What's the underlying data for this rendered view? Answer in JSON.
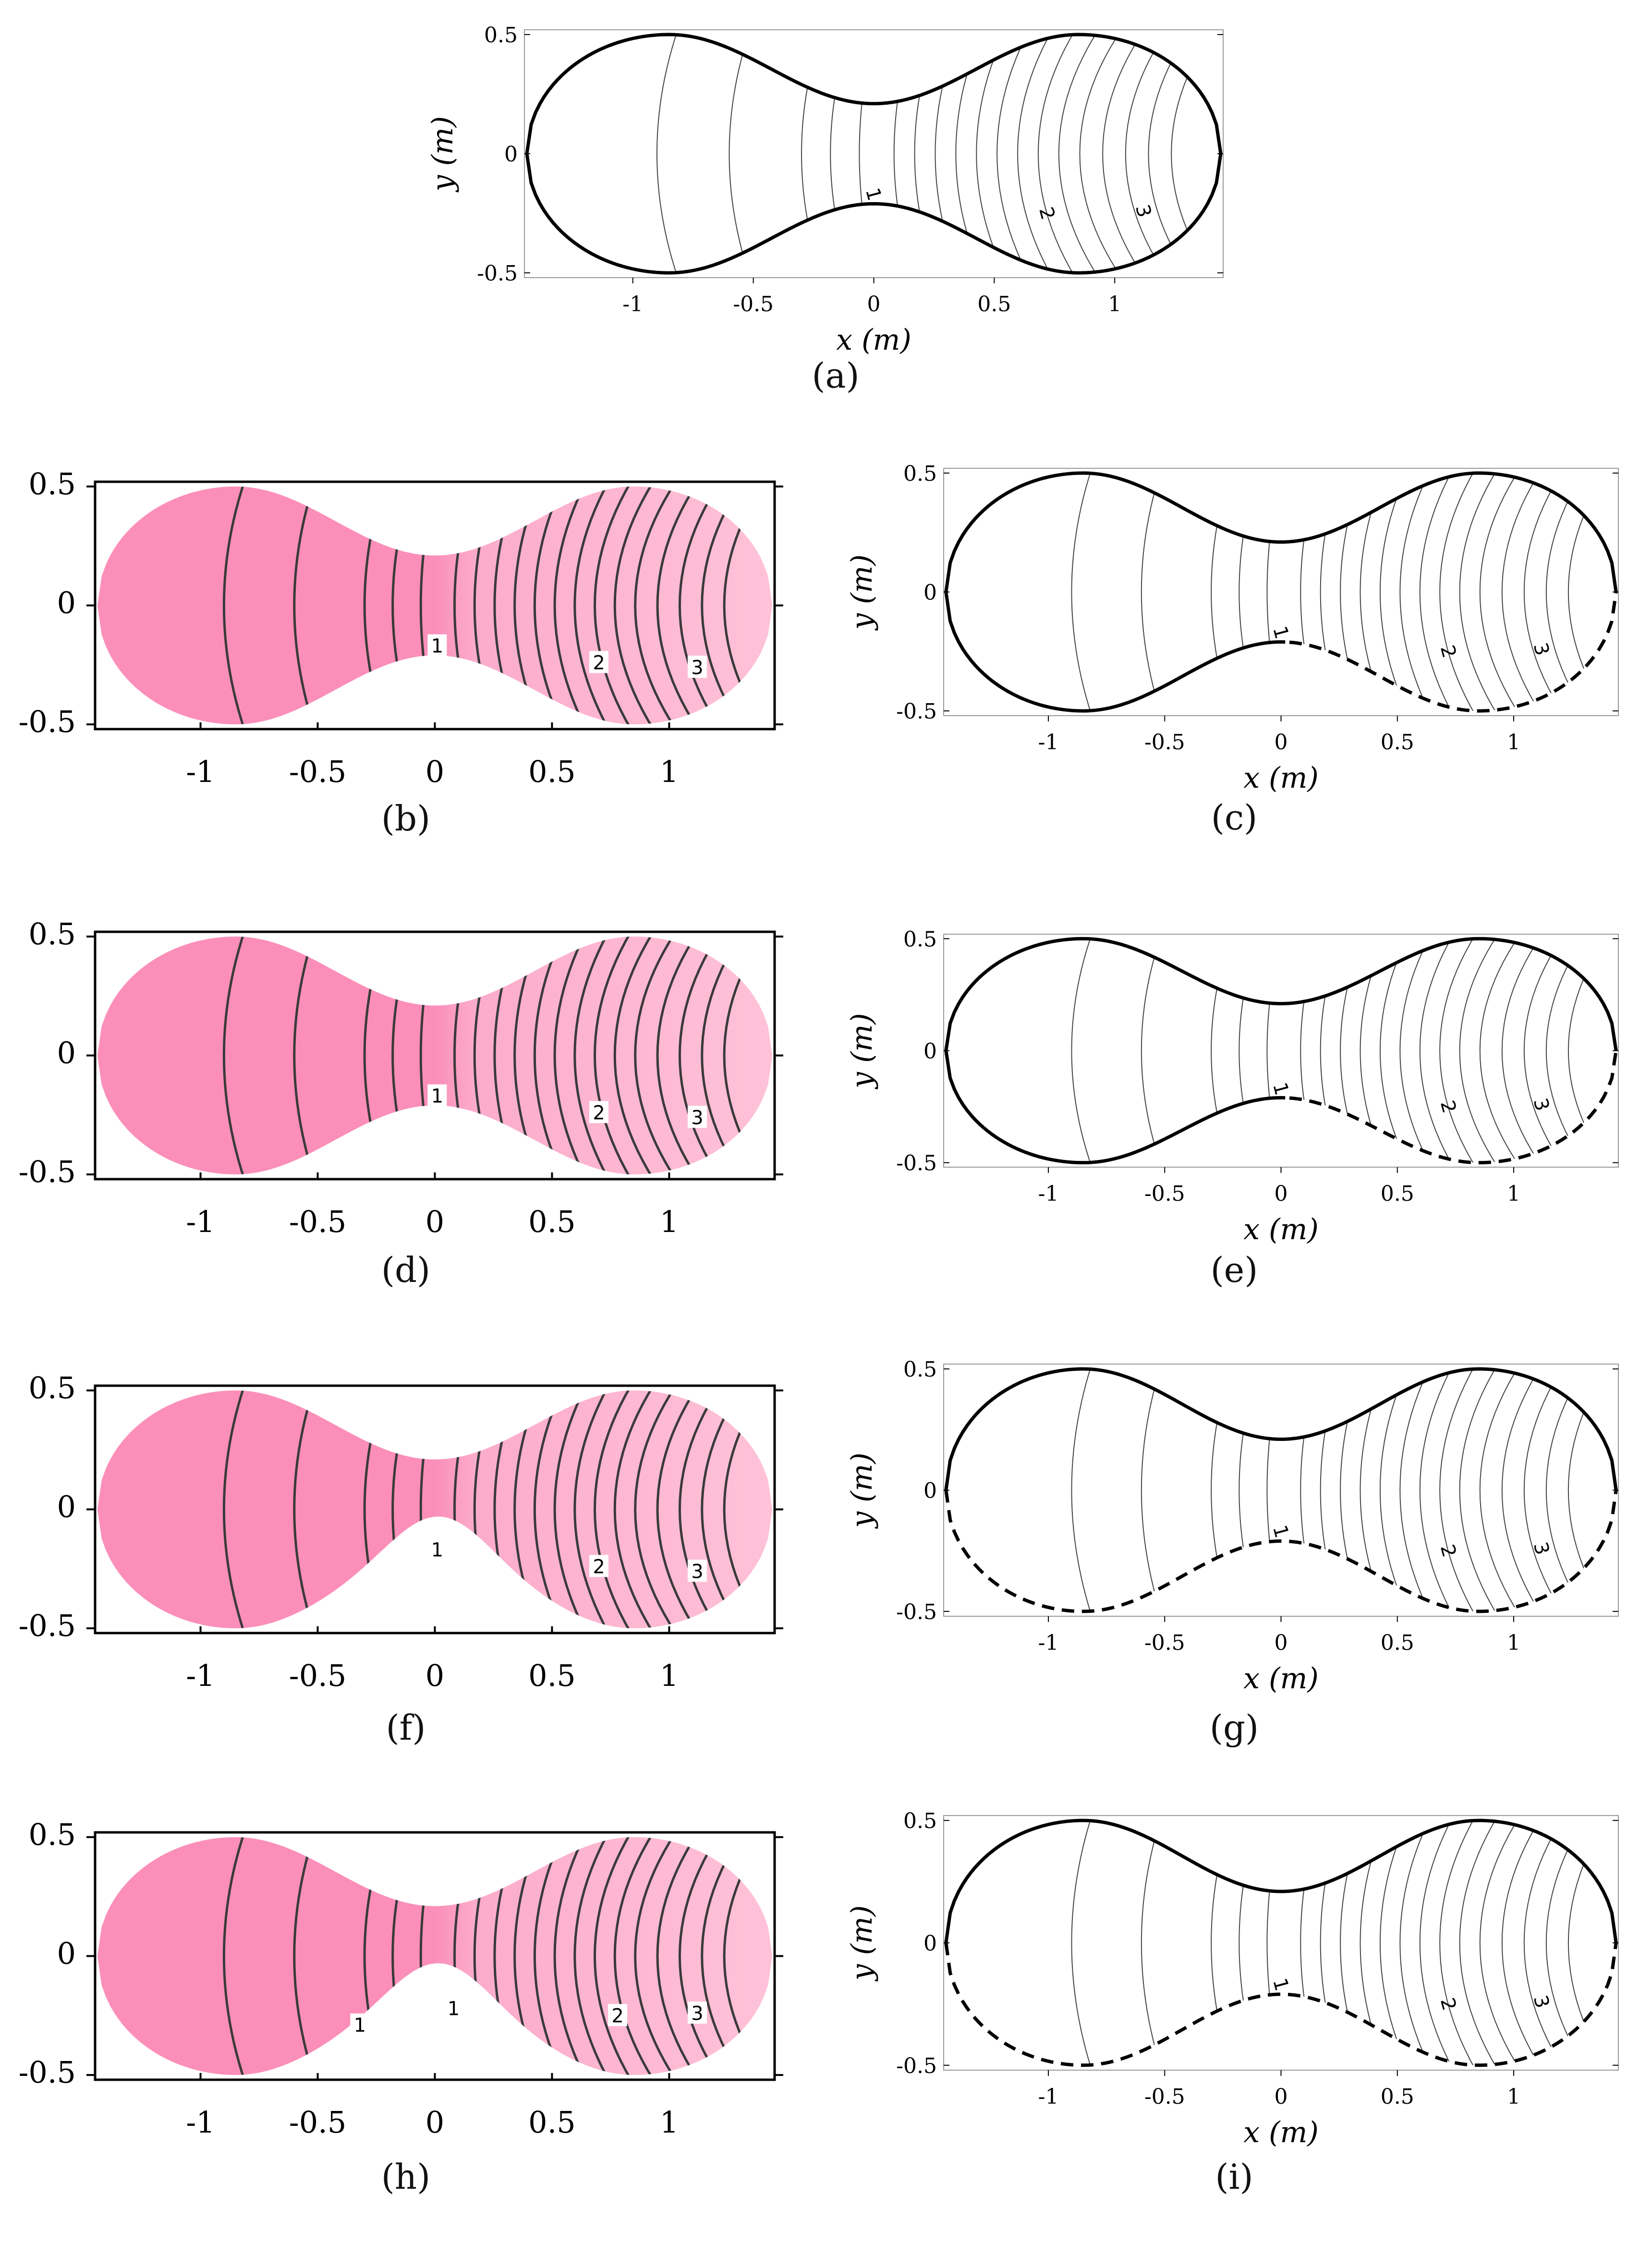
{
  "chart_data": [
    {
      "panel": "a",
      "type": "contour",
      "style": "line",
      "xlim": [
        -1.45,
        1.45
      ],
      "ylim": [
        -0.52,
        0.52
      ],
      "x_ticks": [
        "-1",
        "-0.5",
        "0",
        "0.5",
        "1"
      ],
      "y_ticks": [
        "0.5",
        "0",
        "-0.5"
      ],
      "xlabel": "x (m)",
      "ylabel": "y (m)",
      "contour_labels": [
        "1",
        "2",
        "3"
      ],
      "boundary": {
        "top": "solid",
        "bottom": "solid",
        "dashed_bottom_from_x": null
      }
    },
    {
      "panel": "b",
      "type": "contour",
      "style": "filled",
      "xlim": [
        -1.45,
        1.45
      ],
      "ylim": [
        -0.52,
        0.52
      ],
      "x_ticks": [
        "-1",
        "-0.5",
        "0",
        "0.5",
        "1"
      ],
      "y_ticks": [
        "0.5",
        "0",
        "-0.5"
      ],
      "xlabel": "",
      "ylabel": "",
      "contour_labels": [
        "1",
        "2",
        "3"
      ],
      "bottom_notch": false
    },
    {
      "panel": "c",
      "type": "contour",
      "style": "line",
      "xlim": [
        -1.45,
        1.45
      ],
      "ylim": [
        -0.52,
        0.52
      ],
      "x_ticks": [
        "-1",
        "-0.5",
        "0",
        "0.5",
        "1"
      ],
      "y_ticks": [
        "0.5",
        "0",
        "-0.5"
      ],
      "xlabel": "x (m)",
      "ylabel": "y (m)",
      "contour_labels": [
        "1",
        "2",
        "3"
      ],
      "boundary": {
        "top": "solid",
        "bottom": "solid-then-dashed",
        "dashed_bottom_from_x": 0.02
      }
    },
    {
      "panel": "d",
      "type": "contour",
      "style": "filled",
      "xlim": [
        -1.45,
        1.45
      ],
      "ylim": [
        -0.52,
        0.52
      ],
      "x_ticks": [
        "-1",
        "-0.5",
        "0",
        "0.5",
        "1"
      ],
      "y_ticks": [
        "0.5",
        "0",
        "-0.5"
      ],
      "xlabel": "",
      "ylabel": "",
      "contour_labels": [
        "1",
        "2",
        "3"
      ],
      "bottom_notch": false
    },
    {
      "panel": "e",
      "type": "contour",
      "style": "line",
      "xlim": [
        -1.45,
        1.45
      ],
      "ylim": [
        -0.52,
        0.52
      ],
      "x_ticks": [
        "-1",
        "-0.5",
        "0",
        "0.5",
        "1"
      ],
      "y_ticks": [
        "0.5",
        "0",
        "-0.5"
      ],
      "xlabel": "x (m)",
      "ylabel": "y (m)",
      "contour_labels": [
        "1",
        "2",
        "3"
      ],
      "boundary": {
        "top": "solid",
        "bottom": "solid-then-dashed",
        "dashed_bottom_from_x": 0.02
      }
    },
    {
      "panel": "f",
      "type": "contour",
      "style": "filled",
      "xlim": [
        -1.45,
        1.45
      ],
      "ylim": [
        -0.52,
        0.52
      ],
      "x_ticks": [
        "-1",
        "-0.5",
        "0",
        "0.5",
        "1"
      ],
      "y_ticks": [
        "0.5",
        "0",
        "-0.5"
      ],
      "xlabel": "",
      "ylabel": "",
      "contour_labels": [
        "1",
        "2",
        "3"
      ],
      "bottom_notch": true
    },
    {
      "panel": "g",
      "type": "contour",
      "style": "line",
      "xlim": [
        -1.45,
        1.45
      ],
      "ylim": [
        -0.52,
        0.52
      ],
      "x_ticks": [
        "-1",
        "-0.5",
        "0",
        "0.5",
        "1"
      ],
      "y_ticks": [
        "0.5",
        "0",
        "-0.5"
      ],
      "xlabel": "x (m)",
      "ylabel": "y (m)",
      "contour_labels": [
        "1",
        "2",
        "3"
      ],
      "boundary": {
        "top": "solid",
        "bottom": "dashed",
        "dashed_bottom_from_x": -1.45
      }
    },
    {
      "panel": "h",
      "type": "contour",
      "style": "filled",
      "xlim": [
        -1.45,
        1.45
      ],
      "ylim": [
        -0.52,
        0.52
      ],
      "x_ticks": [
        "-1",
        "-0.5",
        "0",
        "0.5",
        "1"
      ],
      "y_ticks": [
        "0.5",
        "0",
        "-0.5"
      ],
      "xlabel": "",
      "ylabel": "",
      "contour_labels": [
        "1",
        "1",
        "2",
        "3"
      ],
      "bottom_notch": true
    },
    {
      "panel": "i",
      "type": "contour",
      "style": "line",
      "xlim": [
        -1.45,
        1.45
      ],
      "ylim": [
        -0.52,
        0.52
      ],
      "x_ticks": [
        "-1",
        "-0.5",
        "0",
        "0.5",
        "1"
      ],
      "y_ticks": [
        "0.5",
        "0",
        "-0.5"
      ],
      "xlabel": "x (m)",
      "ylabel": "y (m)",
      "contour_labels": [
        "1",
        "2",
        "3"
      ],
      "boundary": {
        "top": "solid",
        "bottom": "dashed",
        "dashed_bottom_from_x": -1.45
      }
    }
  ],
  "captions": {
    "a": "(a)",
    "b": "(b)",
    "c": "(c)",
    "d": "(d)",
    "e": "(e)",
    "f": "(f)",
    "g": "(g)",
    "h": "(h)",
    "i": "(i)"
  },
  "colors": {
    "fill_dark": "#fb8fb9",
    "fill_light": "#ffc2d8",
    "line": "#000000",
    "filled_contour": "#3a3a3a"
  }
}
